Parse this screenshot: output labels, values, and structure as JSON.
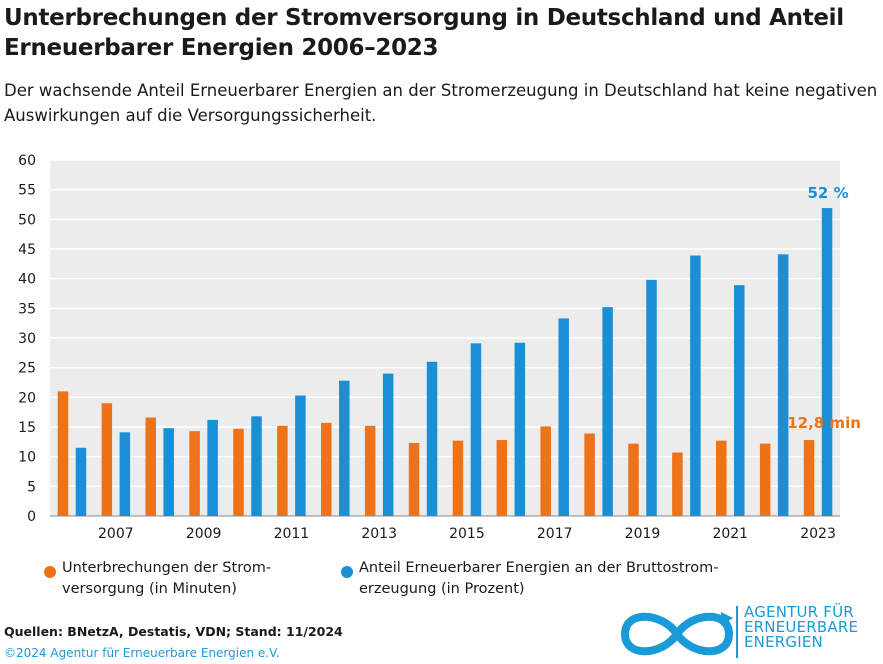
{
  "title": "Unterbrechungen der Stromversorgung in Deutschland und Anteil Erneuerbarer Energien 2006–2023",
  "subtitle": "Der wachsende Anteil Erneuerbarer Energien an der Stromerzeugung in Deutschland hat keine negativen Auswirkungen auf die Versorgungssicherheit.",
  "colors": {
    "orange": "#ee7218",
    "blue": "#1a8fd6",
    "plot_bg": "#ececec",
    "grid": "#ffffff"
  },
  "chart_data": {
    "type": "bar",
    "categories": [
      "2006",
      "2007",
      "2008",
      "2009",
      "2010",
      "2011",
      "2012",
      "2013",
      "2014",
      "2015",
      "2016",
      "2017",
      "2018",
      "2019",
      "2020",
      "2021",
      "2022",
      "2023"
    ],
    "x_tick_labels": [
      "2007",
      "2009",
      "2011",
      "2013",
      "2015",
      "2017",
      "2019",
      "2021",
      "2023"
    ],
    "ylim": [
      0,
      60
    ],
    "y_ticks": [
      "0",
      "5",
      "10",
      "15",
      "20",
      "25",
      "30",
      "35",
      "40",
      "45",
      "50",
      "55",
      "60"
    ],
    "grid": true,
    "series": [
      {
        "name": "Unterbrechungen der Stromversorgung (in Minuten)",
        "color": "#ee7218",
        "values": [
          21.0,
          19.0,
          16.6,
          14.3,
          14.7,
          15.2,
          15.7,
          15.2,
          12.3,
          12.7,
          12.8,
          15.1,
          13.9,
          12.2,
          10.7,
          12.7,
          12.2,
          12.8
        ]
      },
      {
        "name": "Anteil Erneuerbarer Energien an der Bruttostromerzeugung (in Prozent)",
        "color": "#1a8fd6",
        "values": [
          11.5,
          14.1,
          14.8,
          16.2,
          16.8,
          20.3,
          22.8,
          24.0,
          26.0,
          29.1,
          29.2,
          33.3,
          35.2,
          39.8,
          43.9,
          38.9,
          44.1,
          51.9
        ]
      }
    ],
    "annotations": {
      "blue_last": "52 %",
      "orange_last": "12,8 min"
    }
  },
  "legend": {
    "item1": [
      "Unterbrechungen der Strom-",
      "versorgung  (in Minuten)"
    ],
    "item2": [
      "Anteil Erneuerbarer Energien an der Bruttostrom-",
      "erzeugung (in Prozent)"
    ]
  },
  "sources": "Quellen: BNetzA, Destatis, VDN; Stand: 11/2024",
  "copyright": "©2024 Agentur für Erneuerbare Energien e.V.",
  "logo": {
    "line1": "AGENTUR FÜR",
    "line2": "ERNEUERBARE",
    "line3": "ENERGIEN",
    "icon": "infinity-icon"
  }
}
